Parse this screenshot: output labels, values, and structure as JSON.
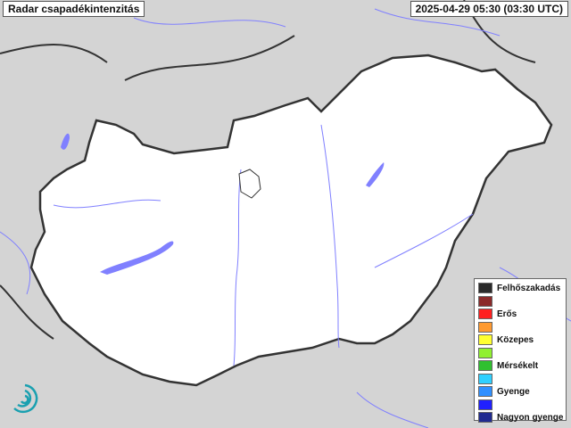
{
  "header": {
    "title": "Radar csapadékintenzitás",
    "timestamp": "2025-04-29 05:30 (03:30 UTC)"
  },
  "legend": [
    {
      "color": "#2a2a2a",
      "label": "Felhőszakadás"
    },
    {
      "color": "#8b2a2a",
      "label": ""
    },
    {
      "color": "#ff2020",
      "label": "Erős"
    },
    {
      "color": "#ff9a30",
      "label": ""
    },
    {
      "color": "#ffff30",
      "label": "Közepes"
    },
    {
      "color": "#90f030",
      "label": ""
    },
    {
      "color": "#30c030",
      "label": "Mérsékelt"
    },
    {
      "color": "#30d0ff",
      "label": ""
    },
    {
      "color": "#3090ff",
      "label": "Gyenge"
    },
    {
      "color": "#2020ff",
      "label": ""
    },
    {
      "color": "#202a90",
      "label": "Nagyon gyenge"
    }
  ],
  "colors": {
    "country_fill": "#ffffff",
    "background": "#d6d6d6",
    "water": "#8080ff",
    "border": "#333333",
    "logo": "#1aa0b0"
  }
}
